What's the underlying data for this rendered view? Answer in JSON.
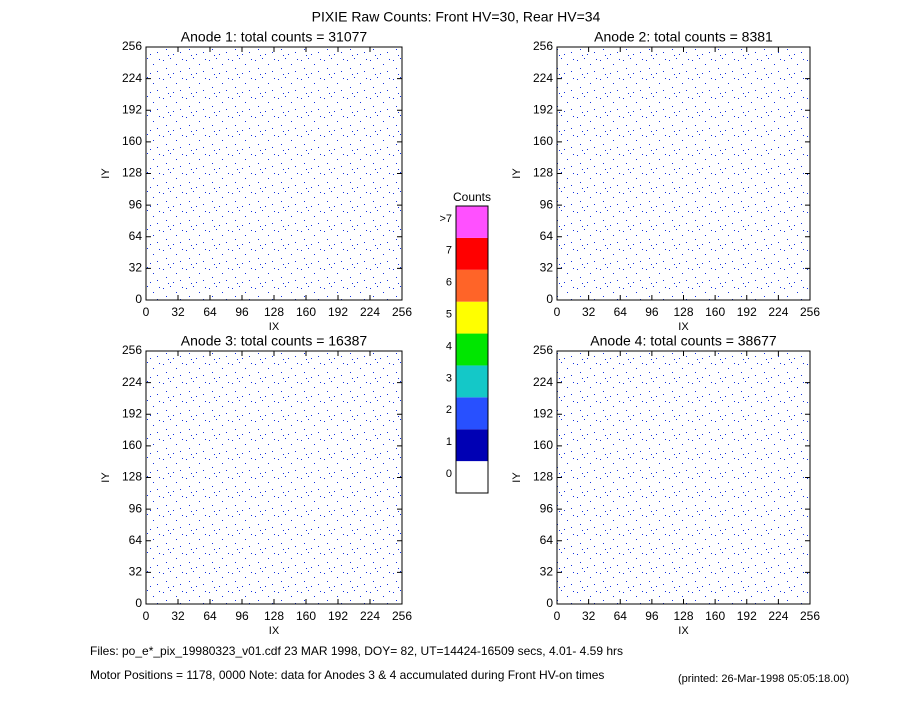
{
  "title": "PIXIE Raw Counts:  Front HV=30, Rear HV=34",
  "chart_data": [
    {
      "type": "heatmap",
      "title": "Anode 1: total counts = 31077",
      "xlabel": "IX",
      "ylabel": "IY",
      "xlim": [
        0,
        256
      ],
      "ylim": [
        0,
        256
      ],
      "xticks": [
        0,
        32,
        64,
        96,
        128,
        160,
        192,
        224,
        256
      ],
      "yticks": [
        0,
        32,
        64,
        96,
        128,
        160,
        192,
        224,
        256
      ]
    },
    {
      "type": "heatmap",
      "title": "Anode 2: total counts = 8381",
      "xlabel": "IX",
      "ylabel": "IY",
      "xlim": [
        0,
        256
      ],
      "ylim": [
        0,
        256
      ],
      "xticks": [
        0,
        32,
        64,
        96,
        128,
        160,
        192,
        224,
        256
      ],
      "yticks": [
        0,
        32,
        64,
        96,
        128,
        160,
        192,
        224,
        256
      ]
    },
    {
      "type": "heatmap",
      "title": "Anode 3: total counts = 16387",
      "xlabel": "IX",
      "ylabel": "IY",
      "xlim": [
        0,
        256
      ],
      "ylim": [
        0,
        256
      ],
      "xticks": [
        0,
        32,
        64,
        96,
        128,
        160,
        192,
        224,
        256
      ],
      "yticks": [
        0,
        32,
        64,
        96,
        128,
        160,
        192,
        224,
        256
      ]
    },
    {
      "type": "heatmap",
      "title": "Anode 4: total counts = 38677",
      "xlabel": "IX",
      "ylabel": "IY",
      "xlim": [
        0,
        256
      ],
      "ylim": [
        0,
        256
      ],
      "xticks": [
        0,
        32,
        64,
        96,
        128,
        160,
        192,
        224,
        256
      ],
      "yticks": [
        0,
        32,
        64,
        96,
        128,
        160,
        192,
        224,
        256
      ]
    }
  ],
  "colorbar": {
    "title": "Counts",
    "ticks": [
      0,
      1,
      2,
      3,
      4,
      5,
      6,
      7,
      {
        "value": 8,
        "label": ">7"
      }
    ],
    "colors": [
      "#ffffff",
      "#0000b4",
      "#2850ff",
      "#14c8c8",
      "#00e600",
      "#ffff00",
      "#ff6428",
      "#ff0000",
      "#ff50ff"
    ]
  },
  "footer": {
    "files": "Files: po_e*_pix_19980323_v01.cdf    23 MAR 1998, DOY= 82, UT=14424-16509 secs,  4.01- 4.59 hrs",
    "note": "Motor Positions = 1178, 0000   Note: data for Anodes 3 & 4 accumulated during Front HV-on times",
    "printed": "(printed: 26-Mar-1998 05:05:18.00)"
  }
}
